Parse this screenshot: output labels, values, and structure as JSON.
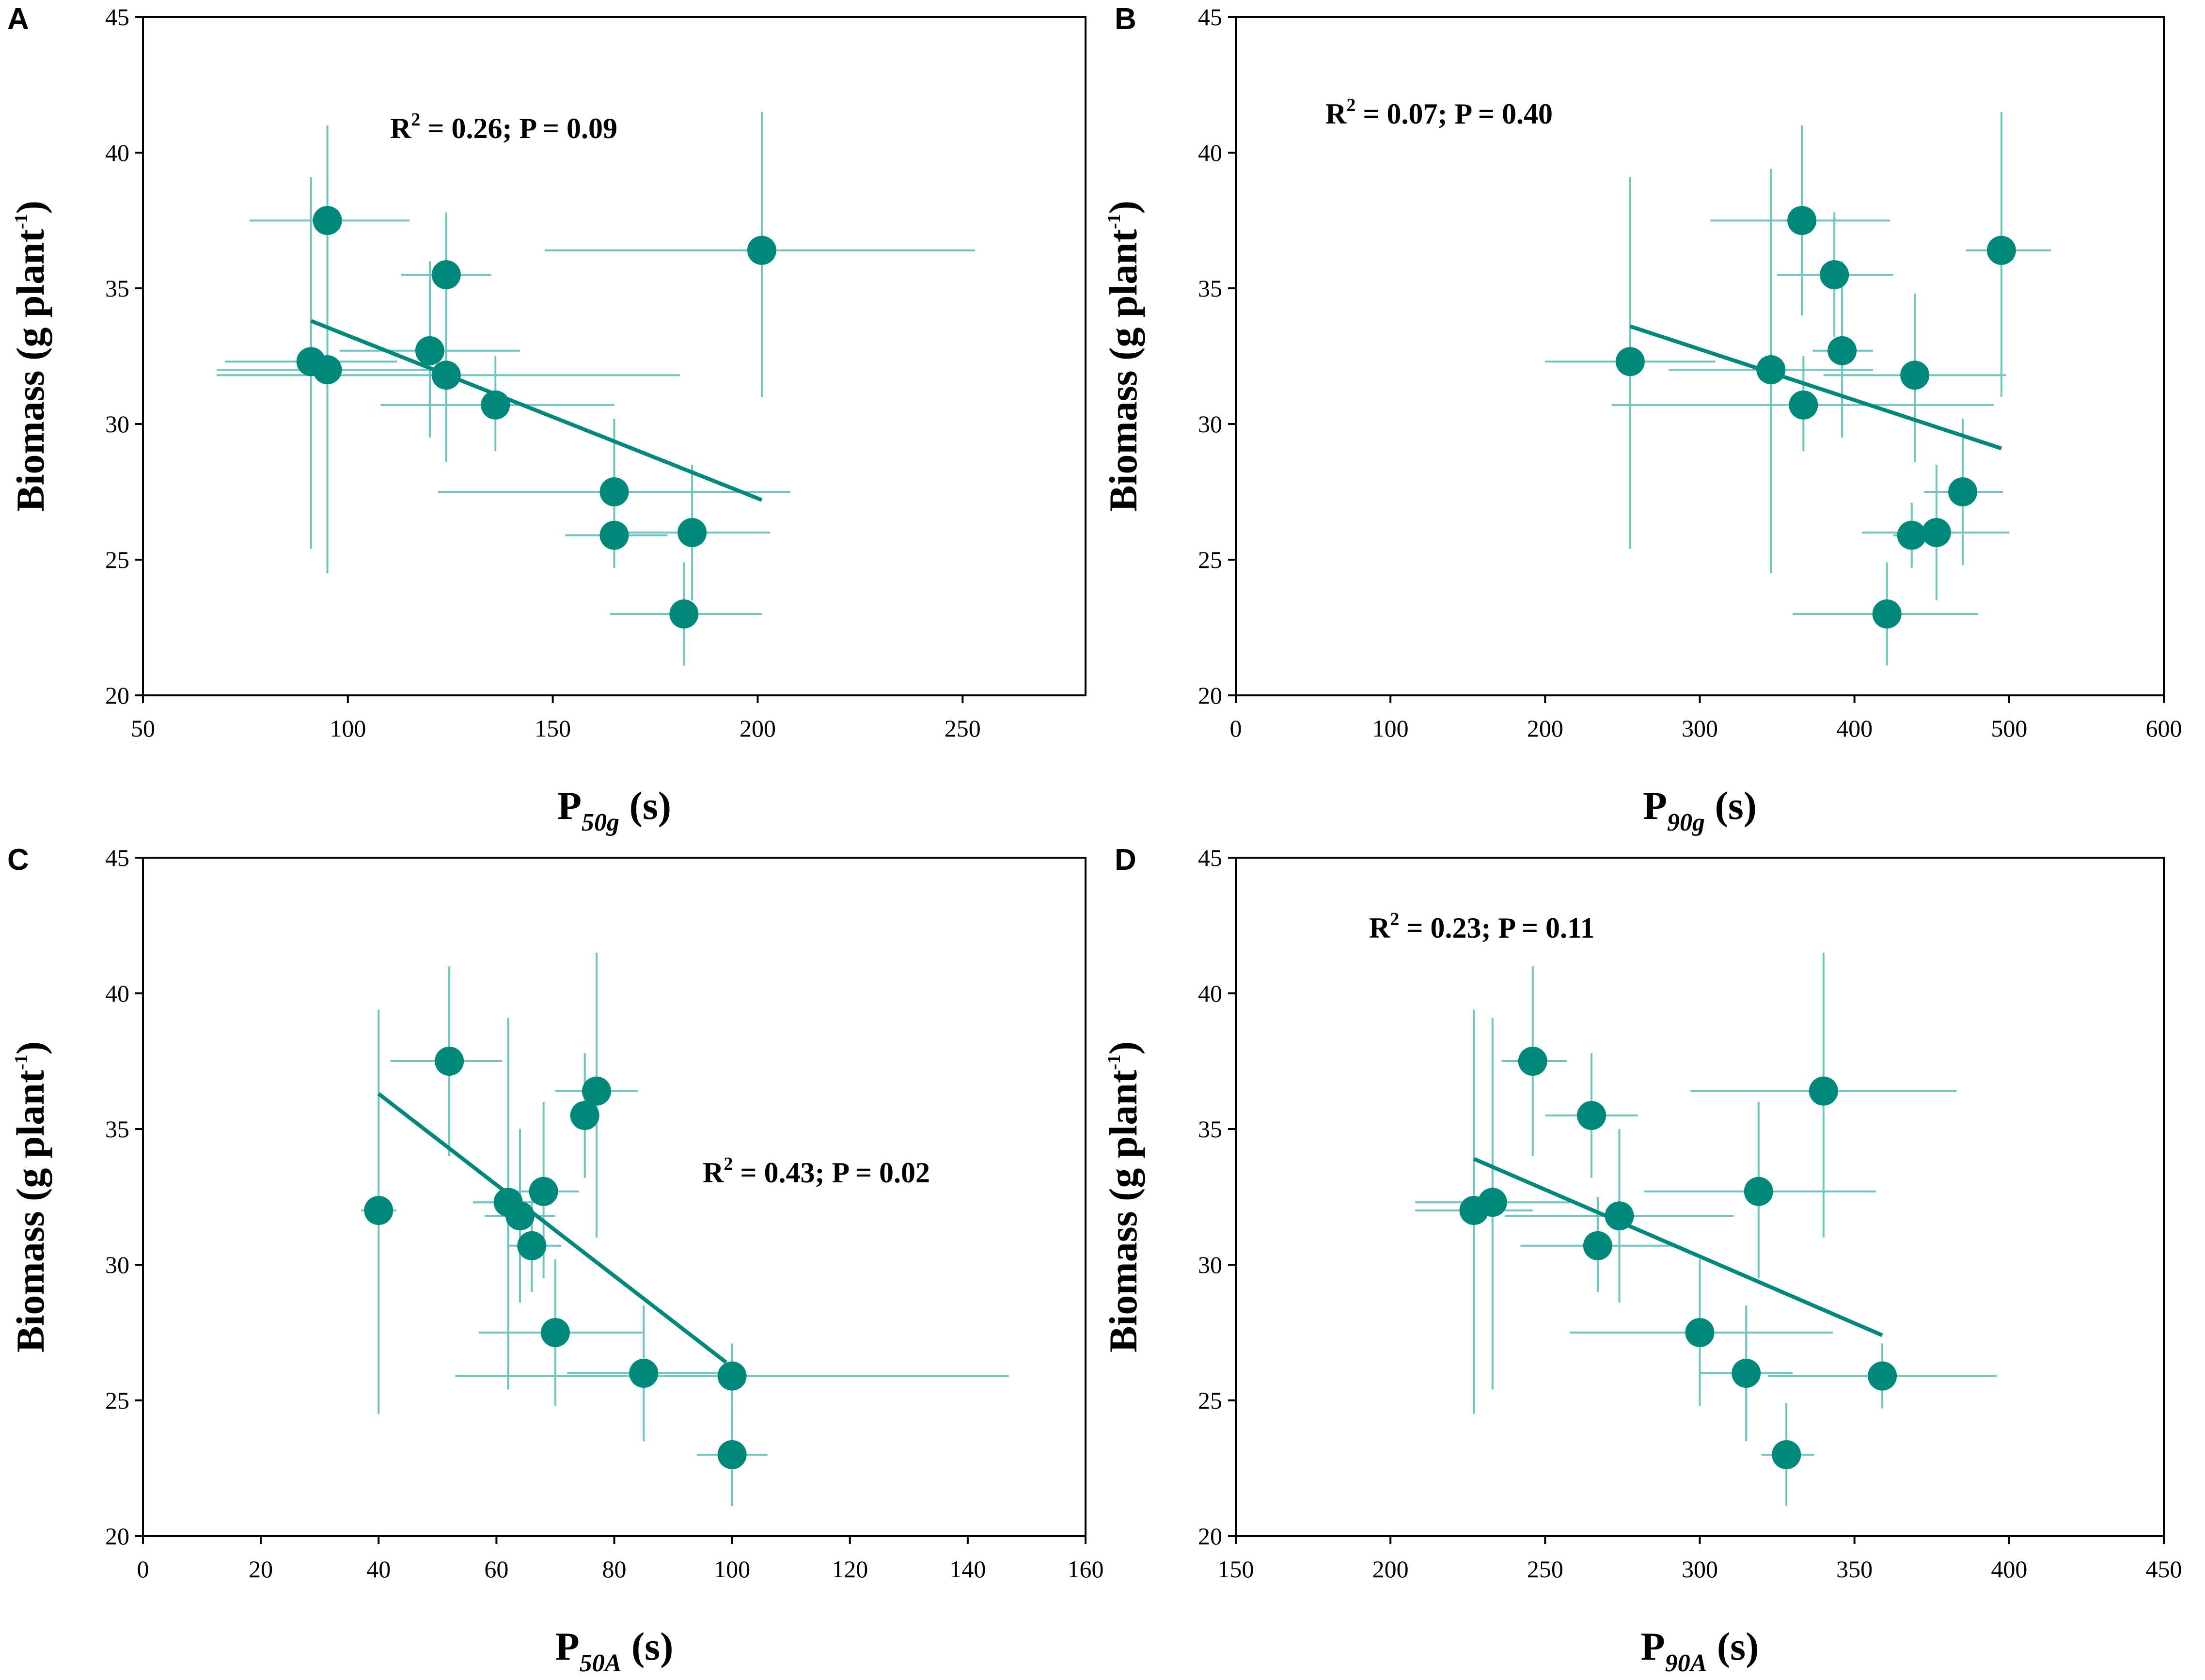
{
  "colors": {
    "marker": "#00897b",
    "errorbar": "#6fc4bd",
    "trendline": "#00897b",
    "axis": "#000000"
  },
  "chart_data": [
    {
      "panel": "A",
      "type": "scatter",
      "title": "",
      "ylabel": "Biomass (g plant",
      "ylabel_sup": "-1",
      "ylabel_close": ")",
      "xlabel_main": "P",
      "xlabel_sub": "50g",
      "xlabel_unit": " (s)",
      "xlim": [
        50,
        280
      ],
      "ylim": [
        20,
        45
      ],
      "xticks": [
        50,
        100,
        150,
        200,
        250
      ],
      "yticks": [
        20,
        25,
        30,
        35,
        40,
        45
      ],
      "stat_pre": "R",
      "stat_sup": "2",
      "stat_post": " = 0.26; P = 0.09",
      "trend": [
        [
          91,
          33.8
        ],
        [
          201,
          27.2
        ]
      ],
      "points": [
        {
          "x": 95,
          "y": 37.5,
          "xlo": 76,
          "xhi": 115,
          "ylo": 34.0,
          "yhi": 41.0
        },
        {
          "x": 201,
          "y": 36.4,
          "xlo": 148,
          "xhi": 253,
          "ylo": 31.0,
          "yhi": 41.5
        },
        {
          "x": 124,
          "y": 35.5,
          "xlo": 113,
          "xhi": 135,
          "ylo": 33.2,
          "yhi": 37.8
        },
        {
          "x": 120,
          "y": 32.7,
          "xlo": 98,
          "xhi": 142,
          "ylo": 29.5,
          "yhi": 36.0
        },
        {
          "x": 91,
          "y": 32.3,
          "xlo": 70,
          "xhi": 112,
          "ylo": 25.4,
          "yhi": 39.1
        },
        {
          "x": 95,
          "y": 32.0,
          "xlo": 68,
          "xhi": 122,
          "ylo": 24.5,
          "yhi": 39.4
        },
        {
          "x": 124,
          "y": 31.8,
          "xlo": 68,
          "xhi": 181,
          "ylo": 28.6,
          "yhi": 35.0
        },
        {
          "x": 136,
          "y": 30.7,
          "xlo": 108,
          "xhi": 165,
          "ylo": 29.0,
          "yhi": 32.5
        },
        {
          "x": 165,
          "y": 27.5,
          "xlo": 122,
          "xhi": 208,
          "ylo": 24.8,
          "yhi": 30.2
        },
        {
          "x": 165,
          "y": 25.9,
          "xlo": 153,
          "xhi": 178,
          "ylo": 24.7,
          "yhi": 27.1
        },
        {
          "x": 184,
          "y": 26.0,
          "xlo": 168,
          "xhi": 203,
          "ylo": 23.5,
          "yhi": 28.5
        },
        {
          "x": 182,
          "y": 23.0,
          "xlo": 164,
          "xhi": 201,
          "ylo": 21.1,
          "yhi": 24.9
        }
      ]
    },
    {
      "panel": "B",
      "type": "scatter",
      "title": "",
      "ylabel": "Biomass (g plant",
      "ylabel_sup": "-1",
      "ylabel_close": ")",
      "xlabel_main": "P",
      "xlabel_sub": "90g",
      "xlabel_unit": " (s)",
      "xlim": [
        0,
        600
      ],
      "ylim": [
        20,
        45
      ],
      "xticks": [
        0,
        100,
        200,
        300,
        400,
        500,
        600
      ],
      "yticks": [
        20,
        25,
        30,
        35,
        40,
        45
      ],
      "stat_pre": "R",
      "stat_sup": "2",
      "stat_post": " = 0.07; P = 0.40",
      "trend": [
        [
          255,
          33.6
        ],
        [
          495,
          29.1
        ]
      ],
      "points": [
        {
          "x": 366,
          "y": 37.5,
          "xlo": 307,
          "xhi": 423,
          "ylo": 34.0,
          "yhi": 41.0
        },
        {
          "x": 495,
          "y": 36.4,
          "xlo": 472,
          "xhi": 527,
          "ylo": 31.0,
          "yhi": 41.5
        },
        {
          "x": 387,
          "y": 35.5,
          "xlo": 350,
          "xhi": 425,
          "ylo": 33.2,
          "yhi": 37.8
        },
        {
          "x": 392,
          "y": 32.7,
          "xlo": 373,
          "xhi": 412,
          "ylo": 29.5,
          "yhi": 36.0
        },
        {
          "x": 255,
          "y": 32.3,
          "xlo": 200,
          "xhi": 310,
          "ylo": 25.4,
          "yhi": 39.1
        },
        {
          "x": 346,
          "y": 32.0,
          "xlo": 280,
          "xhi": 412,
          "ylo": 24.5,
          "yhi": 39.4
        },
        {
          "x": 439,
          "y": 31.8,
          "xlo": 380,
          "xhi": 498,
          "ylo": 28.6,
          "yhi": 34.8
        },
        {
          "x": 367,
          "y": 30.7,
          "xlo": 243,
          "xhi": 490,
          "ylo": 29.0,
          "yhi": 32.5
        },
        {
          "x": 470,
          "y": 27.5,
          "xlo": 445,
          "xhi": 496,
          "ylo": 24.8,
          "yhi": 30.2
        },
        {
          "x": 437,
          "y": 25.9,
          "xlo": 425,
          "xhi": 450,
          "ylo": 24.7,
          "yhi": 27.1
        },
        {
          "x": 453,
          "y": 26.0,
          "xlo": 405,
          "xhi": 500,
          "ylo": 23.5,
          "yhi": 28.5
        },
        {
          "x": 421,
          "y": 23.0,
          "xlo": 360,
          "xhi": 480,
          "ylo": 21.1,
          "yhi": 24.9
        }
      ]
    },
    {
      "panel": "C",
      "type": "scatter",
      "title": "",
      "ylabel": "Biomass (g plant",
      "ylabel_sup": "-1",
      "ylabel_close": ")",
      "xlabel_main": "P",
      "xlabel_sub": "50A",
      "xlabel_unit": " (s)",
      "xlim": [
        0,
        160
      ],
      "ylim": [
        20,
        45
      ],
      "xticks": [
        0,
        20,
        40,
        60,
        80,
        100,
        120,
        140,
        160
      ],
      "yticks": [
        20,
        25,
        30,
        35,
        40,
        45
      ],
      "stat_pre": "R",
      "stat_sup": "2",
      "stat_post": " = 0.43; P = 0.02",
      "trend": [
        [
          40,
          36.3
        ],
        [
          99,
          26.4
        ]
      ],
      "points": [
        {
          "x": 52,
          "y": 37.5,
          "xlo": 42,
          "xhi": 61,
          "ylo": 34.0,
          "yhi": 41.0
        },
        {
          "x": 77,
          "y": 36.4,
          "xlo": 70,
          "xhi": 84,
          "ylo": 31.0,
          "yhi": 41.5
        },
        {
          "x": 75,
          "y": 35.5,
          "xlo": 73,
          "xhi": 77,
          "ylo": 33.2,
          "yhi": 37.8
        },
        {
          "x": 68,
          "y": 32.7,
          "xlo": 62,
          "xhi": 74,
          "ylo": 29.5,
          "yhi": 36.0
        },
        {
          "x": 62,
          "y": 32.3,
          "xlo": 56,
          "xhi": 68,
          "ylo": 25.4,
          "yhi": 39.1
        },
        {
          "x": 40,
          "y": 32.0,
          "xlo": 37,
          "xhi": 43,
          "ylo": 24.5,
          "yhi": 39.4
        },
        {
          "x": 64,
          "y": 31.8,
          "xlo": 58,
          "xhi": 70,
          "ylo": 28.6,
          "yhi": 35.0
        },
        {
          "x": 66,
          "y": 30.7,
          "xlo": 62,
          "xhi": 71,
          "ylo": 29.0,
          "yhi": 32.5
        },
        {
          "x": 70,
          "y": 27.5,
          "xlo": 57,
          "xhi": 85,
          "ylo": 24.8,
          "yhi": 30.2
        },
        {
          "x": 85,
          "y": 26.0,
          "xlo": 72,
          "xhi": 98,
          "ylo": 23.5,
          "yhi": 28.5
        },
        {
          "x": 100,
          "y": 25.9,
          "xlo": 53,
          "xhi": 147,
          "ylo": 24.7,
          "yhi": 27.1
        },
        {
          "x": 100,
          "y": 23.0,
          "xlo": 94,
          "xhi": 106,
          "ylo": 21.1,
          "yhi": 24.9
        }
      ]
    },
    {
      "panel": "D",
      "type": "scatter",
      "title": "",
      "ylabel": "Biomass (g plant",
      "ylabel_sup": "-1",
      "ylabel_close": ")",
      "xlabel_main": "P",
      "xlabel_sub": "90A",
      "xlabel_unit": " (s)",
      "xlim": [
        150,
        450
      ],
      "ylim": [
        20,
        45
      ],
      "xticks": [
        150,
        200,
        250,
        300,
        350,
        400,
        450
      ],
      "yticks": [
        20,
        25,
        30,
        35,
        40,
        45
      ],
      "stat_pre": "R",
      "stat_sup": "2",
      "stat_post": " = 0.23; P = 0.11",
      "trend": [
        [
          227,
          33.9
        ],
        [
          359,
          27.4
        ]
      ],
      "points": [
        {
          "x": 246,
          "y": 37.5,
          "xlo": 236,
          "xhi": 257,
          "ylo": 34.0,
          "yhi": 41.0
        },
        {
          "x": 340,
          "y": 36.4,
          "xlo": 297,
          "xhi": 383,
          "ylo": 31.0,
          "yhi": 41.5
        },
        {
          "x": 265,
          "y": 35.5,
          "xlo": 250,
          "xhi": 280,
          "ylo": 33.2,
          "yhi": 37.8
        },
        {
          "x": 319,
          "y": 32.7,
          "xlo": 282,
          "xhi": 357,
          "ylo": 29.5,
          "yhi": 36.0
        },
        {
          "x": 233,
          "y": 32.3,
          "xlo": 208,
          "xhi": 258,
          "ylo": 25.4,
          "yhi": 39.1
        },
        {
          "x": 227,
          "y": 32.0,
          "xlo": 208,
          "xhi": 246,
          "ylo": 24.5,
          "yhi": 39.4
        },
        {
          "x": 274,
          "y": 31.8,
          "xlo": 237,
          "xhi": 311,
          "ylo": 28.6,
          "yhi": 35.0
        },
        {
          "x": 267,
          "y": 30.7,
          "xlo": 242,
          "xhi": 292,
          "ylo": 29.0,
          "yhi": 32.5
        },
        {
          "x": 300,
          "y": 27.5,
          "xlo": 258,
          "xhi": 343,
          "ylo": 24.8,
          "yhi": 30.2
        },
        {
          "x": 315,
          "y": 26.0,
          "xlo": 300,
          "xhi": 330,
          "ylo": 23.5,
          "yhi": 28.5
        },
        {
          "x": 359,
          "y": 25.9,
          "xlo": 322,
          "xhi": 396,
          "ylo": 24.7,
          "yhi": 27.1
        },
        {
          "x": 328,
          "y": 23.0,
          "xlo": 320,
          "xhi": 337,
          "ylo": 21.1,
          "yhi": 24.9
        }
      ]
    }
  ]
}
